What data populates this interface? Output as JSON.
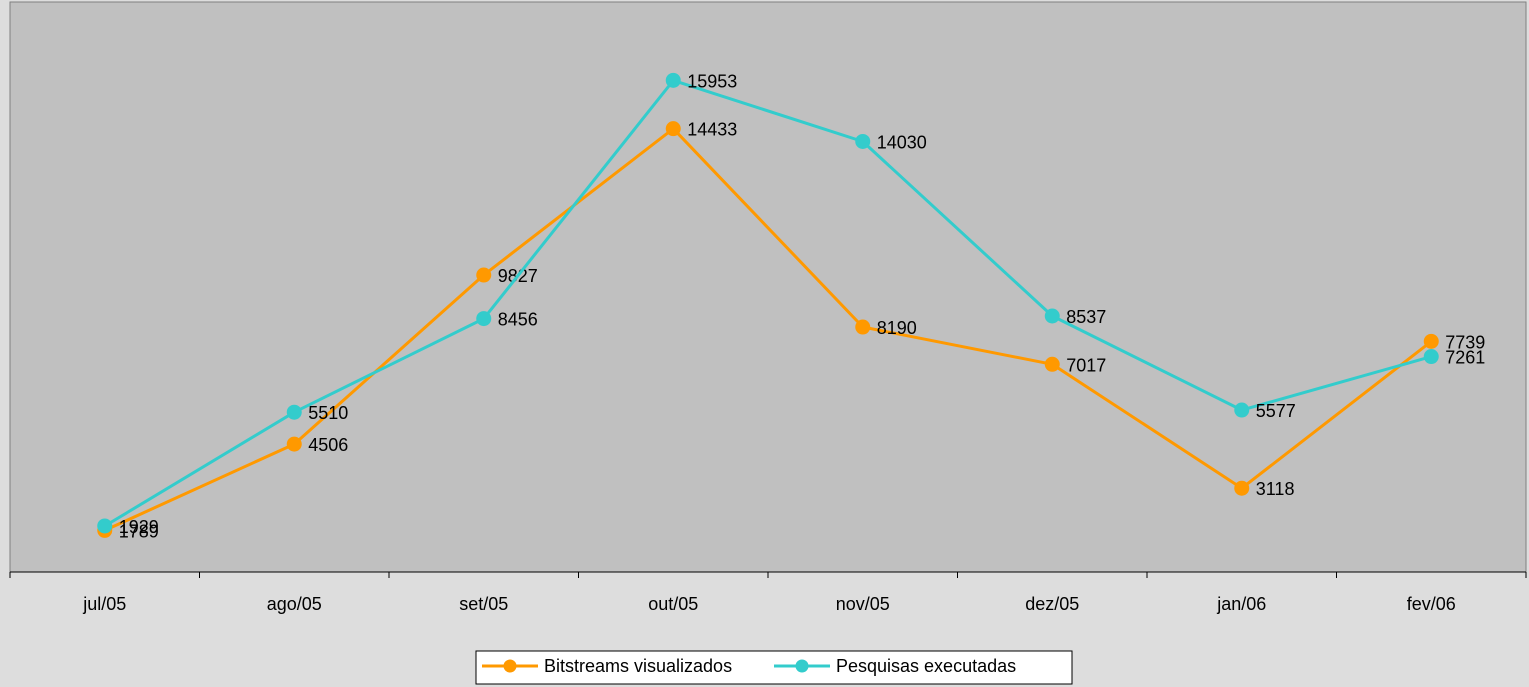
{
  "chart_data": {
    "type": "line",
    "categories": [
      "jul/05",
      "ago/05",
      "set/05",
      "out/05",
      "nov/05",
      "dez/05",
      "jan/06",
      "fev/06"
    ],
    "series": [
      {
        "name": "Bitstreams visualizados",
        "color": "#ff9900",
        "values": [
          1789,
          4506,
          9827,
          14433,
          8190,
          7017,
          3118,
          7739
        ]
      },
      {
        "name": "Pesquisas executadas",
        "color": "#33cccc",
        "values": [
          1929,
          5510,
          8456,
          15953,
          14030,
          8537,
          5577,
          7261
        ]
      }
    ],
    "data_labels": true,
    "y_axis_visible": false,
    "grid": false,
    "plot_background": "#c0c0c0",
    "legend_position": "bottom"
  }
}
